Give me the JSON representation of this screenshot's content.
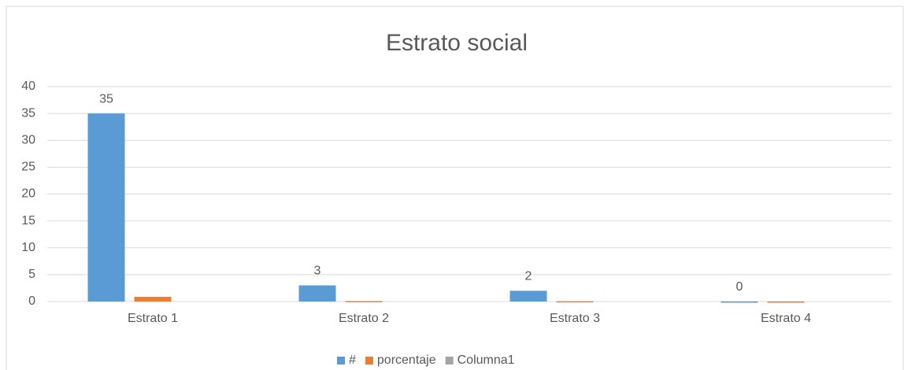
{
  "chart_data": {
    "type": "bar",
    "title": "Estrato social",
    "categories": [
      "Estrato 1",
      "Estrato 2",
      "Estrato 3",
      "Estrato 4"
    ],
    "series": [
      {
        "name": "#",
        "color": "#5b9bd5",
        "values": [
          35,
          3,
          2,
          0
        ]
      },
      {
        "name": "porcentaje",
        "color": "#ed7d31",
        "values": [
          0.875,
          0.075,
          0.05,
          0
        ]
      },
      {
        "name": "Columna1",
        "color": "#a5a5a5",
        "values": [
          null,
          null,
          null,
          null
        ]
      }
    ],
    "data_labels_series": "#",
    "ylim": [
      0,
      40
    ],
    "yticks": [
      0,
      5,
      10,
      15,
      20,
      25,
      30,
      35,
      40
    ],
    "grid": true,
    "legend": "bottom"
  }
}
